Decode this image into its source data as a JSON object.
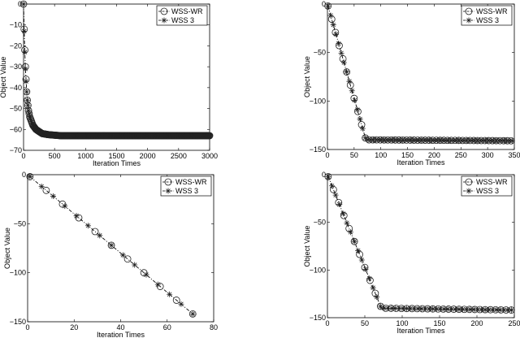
{
  "chart_data": [
    {
      "type": "line",
      "xlabel": "Iteration Times",
      "ylabel": "Object Value",
      "xlim": [
        0,
        3000
      ],
      "ylim": [
        -70,
        0
      ],
      "xticks": [
        "0",
        "500",
        "1000",
        "1500",
        "2000",
        "2500",
        "3000"
      ],
      "yticks": [
        "0",
        "-10",
        "-20",
        "-30",
        "-40",
        "-50",
        "-60",
        "-70"
      ],
      "legend": "top-right",
      "series": [
        {
          "name": "WSS-WR",
          "marker": "circle",
          "x": [
            0,
            10,
            20,
            30,
            40,
            50,
            60,
            80,
            100,
            150,
            200,
            300,
            400,
            600,
            1000,
            3000
          ],
          "y": [
            0,
            -12,
            -22,
            -30,
            -36,
            -42,
            -46,
            -51,
            -54,
            -58,
            -60,
            -62,
            -62.5,
            -63,
            -63,
            -63
          ]
        },
        {
          "name": "WSS 3",
          "marker": "asterisk",
          "x": [
            0,
            10,
            20,
            30,
            40,
            50,
            60,
            80,
            100,
            150,
            200,
            300,
            400,
            600,
            1000,
            3000
          ],
          "y": [
            0,
            -13,
            -23,
            -31,
            -37,
            -42,
            -46,
            -51,
            -54,
            -58,
            -60,
            -62,
            -62.5,
            -63,
            -63,
            -63
          ]
        }
      ]
    },
    {
      "type": "line",
      "xlabel": "Iteration Times",
      "ylabel": "Object Value",
      "xlim": [
        0,
        350
      ],
      "ylim": [
        -150,
        0
      ],
      "xticks": [
        "0",
        "50",
        "100",
        "150",
        "200",
        "250",
        "300",
        "350"
      ],
      "yticks": [
        "0",
        "-50",
        "-100",
        "-150"
      ],
      "legend": "top-right",
      "series": [
        {
          "name": "WSS-WR",
          "marker": "circle",
          "x": [
            1,
            72,
            350
          ],
          "y": [
            -2,
            -140,
            -141
          ]
        },
        {
          "name": "WSS 3",
          "marker": "asterisk",
          "x": [
            1,
            72,
            350
          ],
          "y": [
            -2,
            -140,
            -141
          ]
        }
      ]
    },
    {
      "type": "line",
      "xlabel": "Iteration Times",
      "ylabel": "Object Value",
      "xlim": [
        0,
        80
      ],
      "ylim": [
        -150,
        0
      ],
      "xticks": [
        "0",
        "20",
        "40",
        "60",
        "80"
      ],
      "yticks": [
        "0",
        "-50",
        "-100",
        "-150"
      ],
      "legend": "top-right",
      "series": [
        {
          "name": "WSS-WR",
          "marker": "circle",
          "x": [
            1,
            8,
            15,
            22,
            29,
            36,
            43,
            50,
            57,
            64,
            71
          ],
          "y": [
            -2,
            -16,
            -30,
            -44,
            -58,
            -72,
            -86,
            -100,
            -114,
            -128,
            -142
          ]
        },
        {
          "name": "WSS 3",
          "marker": "asterisk",
          "x": [
            1,
            6,
            11,
            16,
            21,
            26,
            31,
            36,
            41,
            46,
            51,
            56,
            61,
            66,
            71
          ],
          "y": [
            -2,
            -12,
            -22,
            -32,
            -42,
            -52,
            -62,
            -72,
            -82,
            -92,
            -102,
            -112,
            -122,
            -132,
            -142
          ]
        }
      ]
    },
    {
      "type": "line",
      "xlabel": "Iteration Times",
      "ylabel": "Object Value",
      "xlim": [
        0,
        250
      ],
      "ylim": [
        -150,
        0
      ],
      "xticks": [
        "0",
        "50",
        "100",
        "150",
        "200",
        "250"
      ],
      "yticks": [
        "0",
        "-50",
        "-100",
        "-150"
      ],
      "legend": "top-right",
      "series": [
        {
          "name": "WSS-WR",
          "marker": "circle",
          "x": [
            1,
            72,
            250
          ],
          "y": [
            -2,
            -140,
            -142
          ]
        },
        {
          "name": "WSS 3",
          "marker": "asterisk",
          "x": [
            1,
            72,
            250
          ],
          "y": [
            -2,
            -140,
            -142
          ]
        }
      ]
    }
  ]
}
